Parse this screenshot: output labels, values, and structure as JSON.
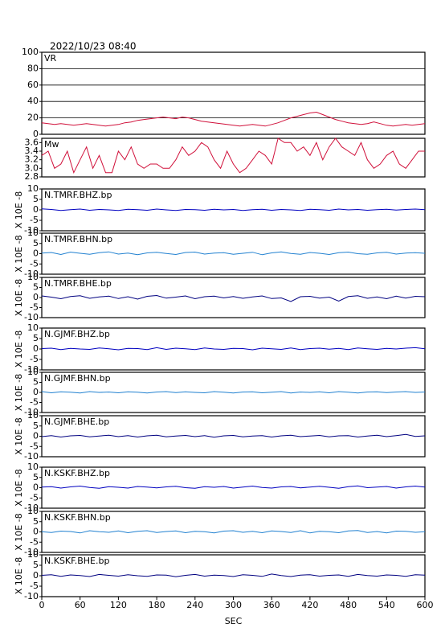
{
  "title": "2022/10/23 08:40",
  "chart_data": [
    {
      "type": "line",
      "title": "VR",
      "color": "#d0103a",
      "grid": true,
      "xlim": [
        0,
        600
      ],
      "ylim": [
        0,
        100
      ],
      "yticks": [
        0,
        20,
        40,
        60,
        80,
        100
      ],
      "x": [
        0,
        10,
        20,
        30,
        40,
        50,
        60,
        70,
        80,
        90,
        100,
        110,
        120,
        130,
        140,
        150,
        160,
        170,
        180,
        190,
        200,
        210,
        220,
        230,
        240,
        250,
        260,
        270,
        280,
        290,
        300,
        310,
        320,
        330,
        340,
        350,
        360,
        370,
        380,
        390,
        400,
        410,
        420,
        430,
        440,
        450,
        460,
        470,
        480,
        490,
        500,
        510,
        520,
        530,
        540,
        550,
        560,
        570,
        580,
        590,
        600
      ],
      "values": [
        14,
        13,
        12,
        13,
        12,
        11,
        12,
        13,
        12,
        11,
        10,
        11,
        12,
        14,
        15,
        17,
        18,
        19,
        20,
        21,
        20,
        19,
        21,
        20,
        18,
        16,
        15,
        14,
        13,
        12,
        11,
        10,
        11,
        12,
        11,
        10,
        12,
        14,
        17,
        20,
        22,
        24,
        26,
        27,
        24,
        21,
        18,
        16,
        14,
        13,
        12,
        13,
        15,
        13,
        11,
        10,
        11,
        12,
        11,
        12,
        13
      ]
    },
    {
      "type": "line",
      "title": "Mw",
      "color": "#d0103a",
      "xlim": [
        0,
        600
      ],
      "ylim": [
        2.8,
        3.7
      ],
      "yticks": [
        2.8,
        {
          "value": 3,
          "label": "3.0"
        },
        3.2,
        3.4,
        3.6
      ],
      "x": [
        0,
        10,
        20,
        30,
        40,
        50,
        60,
        70,
        80,
        90,
        100,
        110,
        120,
        130,
        140,
        150,
        160,
        170,
        180,
        190,
        200,
        210,
        220,
        230,
        240,
        250,
        260,
        270,
        280,
        290,
        300,
        310,
        320,
        330,
        340,
        350,
        360,
        370,
        380,
        390,
        400,
        410,
        420,
        430,
        440,
        450,
        460,
        470,
        480,
        490,
        500,
        510,
        520,
        530,
        540,
        550,
        560,
        570,
        580,
        590,
        600
      ],
      "values": [
        3.3,
        3.4,
        3.0,
        3.1,
        3.4,
        2.9,
        3.2,
        3.5,
        3.0,
        3.3,
        2.9,
        2.9,
        3.4,
        3.2,
        3.5,
        3.1,
        3.0,
        3.1,
        3.1,
        3.0,
        3.0,
        3.2,
        3.5,
        3.3,
        3.4,
        3.6,
        3.5,
        3.2,
        3.0,
        3.4,
        3.1,
        2.9,
        3.0,
        3.2,
        3.4,
        3.3,
        3.1,
        3.7,
        3.6,
        3.6,
        3.4,
        3.5,
        3.3,
        3.6,
        3.2,
        3.5,
        3.7,
        3.5,
        3.4,
        3.3,
        3.6,
        3.2,
        3.0,
        3.1,
        3.3,
        3.4,
        3.1,
        3.0,
        3.2,
        3.4,
        3.4
      ]
    },
    {
      "type": "line",
      "title": "N.TMRF.BHZ.bp",
      "ylabel": "X 10E -8",
      "color": "#0000c0",
      "xlim": [
        0,
        600
      ],
      "ylim": [
        -10,
        10
      ],
      "yticks": [
        -10,
        -5,
        0,
        5,
        10
      ],
      "x": [
        0,
        15,
        30,
        45,
        60,
        75,
        90,
        105,
        120,
        135,
        150,
        165,
        180,
        195,
        210,
        225,
        240,
        255,
        270,
        285,
        300,
        315,
        330,
        345,
        360,
        375,
        390,
        405,
        420,
        435,
        450,
        465,
        480,
        495,
        510,
        525,
        540,
        555,
        570,
        585,
        600
      ],
      "values": [
        0.5,
        0.2,
        -0.3,
        0.1,
        0.4,
        -0.2,
        0.2,
        0.0,
        -0.3,
        0.3,
        0.1,
        -0.2,
        0.4,
        0.0,
        -0.3,
        0.2,
        0.1,
        -0.2,
        0.3,
        0.0,
        0.2,
        -0.3,
        0.1,
        0.3,
        -0.2,
        0.2,
        0.0,
        -0.3,
        0.3,
        0.1,
        -0.2,
        0.4,
        0.0,
        0.2,
        -0.2,
        0.1,
        0.3,
        -0.1,
        0.2,
        0.4,
        0.1
      ]
    },
    {
      "type": "line",
      "title": "N.TMRF.BHN.bp",
      "ylabel": "X 10E -8",
      "color": "#2080d0",
      "xlim": [
        0,
        600
      ],
      "ylim": [
        -10,
        10
      ],
      "yticks": [
        -10,
        -5,
        0,
        5,
        10
      ],
      "x": [
        0,
        15,
        30,
        45,
        60,
        75,
        90,
        105,
        120,
        135,
        150,
        165,
        180,
        195,
        210,
        225,
        240,
        255,
        270,
        285,
        300,
        315,
        330,
        345,
        360,
        375,
        390,
        405,
        420,
        435,
        450,
        465,
        480,
        495,
        510,
        525,
        540,
        555,
        570,
        585,
        600
      ],
      "values": [
        0.3,
        0.6,
        -0.4,
        0.8,
        0.2,
        -0.3,
        0.5,
        0.9,
        -0.2,
        0.3,
        -0.5,
        0.4,
        0.7,
        0.1,
        -0.4,
        0.6,
        0.8,
        -0.2,
        0.3,
        0.5,
        -0.3,
        0.2,
        0.7,
        -0.5,
        0.4,
        0.9,
        0.1,
        -0.3,
        0.6,
        0.2,
        -0.4,
        0.5,
        0.8,
        0.0,
        -0.3,
        0.4,
        0.7,
        -0.2,
        0.3,
        0.5,
        0.2
      ]
    },
    {
      "type": "line",
      "title": "N.TMRF.BHE.bp",
      "ylabel": "X 10E -8",
      "color": "#000080",
      "xlim": [
        0,
        600
      ],
      "ylim": [
        -10,
        10
      ],
      "yticks": [
        -10,
        -5,
        0,
        5,
        10
      ],
      "x": [
        0,
        15,
        30,
        45,
        60,
        75,
        90,
        105,
        120,
        135,
        150,
        165,
        180,
        195,
        210,
        225,
        240,
        255,
        270,
        285,
        300,
        315,
        330,
        345,
        360,
        375,
        390,
        405,
        420,
        435,
        450,
        465,
        480,
        495,
        510,
        525,
        540,
        555,
        570,
        585,
        600
      ],
      "values": [
        0.8,
        0.2,
        -0.6,
        0.5,
        0.9,
        -0.4,
        0.3,
        0.7,
        -0.5,
        0.4,
        -0.8,
        0.6,
        1.0,
        -0.3,
        0.2,
        0.8,
        -0.6,
        0.4,
        0.7,
        -0.2,
        0.5,
        -0.4,
        0.3,
        0.8,
        -0.5,
        -0.2,
        -2.0,
        0.4,
        0.6,
        -0.3,
        0.2,
        -1.8,
        0.5,
        0.9,
        -0.4,
        0.3,
        -0.6,
        0.7,
        -0.3,
        0.6,
        0.4
      ]
    },
    {
      "type": "line",
      "title": "N.GJMF.BHZ.bp",
      "ylabel": "X 10E -8",
      "color": "#0000c0",
      "xlim": [
        0,
        600
      ],
      "ylim": [
        -10,
        10
      ],
      "yticks": [
        -10,
        -5,
        0,
        5,
        10
      ],
      "x": [
        0,
        15,
        30,
        45,
        60,
        75,
        90,
        105,
        120,
        135,
        150,
        165,
        180,
        195,
        210,
        225,
        240,
        255,
        270,
        285,
        300,
        315,
        330,
        345,
        360,
        375,
        390,
        405,
        420,
        435,
        450,
        465,
        480,
        495,
        510,
        525,
        540,
        555,
        570,
        585,
        600
      ],
      "values": [
        0.2,
        0.4,
        -0.3,
        0.3,
        0.0,
        -0.2,
        0.5,
        0.1,
        -0.4,
        0.3,
        0.2,
        -0.3,
        0.6,
        -0.2,
        0.4,
        0.1,
        -0.3,
        0.5,
        0.0,
        -0.2,
        0.3,
        0.2,
        -0.4,
        0.4,
        0.1,
        -0.2,
        0.5,
        -0.3,
        0.2,
        0.4,
        -0.1,
        0.3,
        -0.3,
        0.5,
        0.1,
        -0.2,
        0.3,
        0.0,
        0.4,
        0.6,
        0.1
      ]
    },
    {
      "type": "line",
      "title": "N.GJMF.BHN.bp",
      "ylabel": "X 10E -8",
      "color": "#2080d0",
      "xlim": [
        0,
        600
      ],
      "ylim": [
        -10,
        10
      ],
      "yticks": [
        -10,
        -5,
        0,
        5,
        10
      ],
      "x": [
        0,
        15,
        30,
        45,
        60,
        75,
        90,
        105,
        120,
        135,
        150,
        165,
        180,
        195,
        210,
        225,
        240,
        255,
        270,
        285,
        300,
        315,
        330,
        345,
        360,
        375,
        390,
        405,
        420,
        435,
        450,
        465,
        480,
        495,
        510,
        525,
        540,
        555,
        570,
        585,
        600
      ],
      "values": [
        0.4,
        -0.2,
        0.3,
        0.1,
        -0.3,
        0.4,
        0.0,
        0.2,
        -0.2,
        0.3,
        0.1,
        -0.3,
        0.2,
        0.4,
        -0.1,
        0.3,
        0.0,
        -0.2,
        0.4,
        0.1,
        -0.3,
        0.2,
        0.3,
        -0.2,
        0.1,
        0.4,
        -0.3,
        0.2,
        0.0,
        0.3,
        -0.2,
        0.4,
        0.1,
        -0.3,
        0.2,
        0.3,
        -0.1,
        0.2,
        0.4,
        0.0,
        0.2
      ]
    },
    {
      "type": "line",
      "title": "N.GJMF.BHE.bp",
      "ylabel": "X 10E -8",
      "color": "#000080",
      "xlim": [
        0,
        600
      ],
      "ylim": [
        -10,
        10
      ],
      "yticks": [
        -10,
        -5,
        0,
        5,
        10
      ],
      "x": [
        0,
        15,
        30,
        45,
        60,
        75,
        90,
        105,
        120,
        135,
        150,
        165,
        180,
        195,
        210,
        225,
        240,
        255,
        270,
        285,
        300,
        315,
        330,
        345,
        360,
        375,
        390,
        405,
        420,
        435,
        450,
        465,
        480,
        495,
        510,
        525,
        540,
        555,
        570,
        585,
        600
      ],
      "values": [
        -0.2,
        0.3,
        -0.4,
        0.2,
        0.4,
        -0.3,
        0.1,
        0.5,
        -0.2,
        0.3,
        -0.4,
        0.2,
        0.5,
        -0.3,
        0.1,
        0.4,
        -0.2,
        0.3,
        -0.5,
        0.2,
        0.4,
        -0.3,
        0.1,
        0.3,
        -0.4,
        0.2,
        0.5,
        -0.2,
        0.1,
        0.4,
        -0.3,
        0.2,
        0.3,
        -0.4,
        0.1,
        0.5,
        -0.2,
        0.3,
        0.9,
        -0.1,
        0.2
      ]
    },
    {
      "type": "line",
      "title": "N.KSKF.BHZ.bp",
      "ylabel": "X 10E -8",
      "color": "#0000c0",
      "xlim": [
        0,
        600
      ],
      "ylim": [
        -10,
        10
      ],
      "yticks": [
        -10,
        -5,
        0,
        5,
        10
      ],
      "x": [
        0,
        15,
        30,
        45,
        60,
        75,
        90,
        105,
        120,
        135,
        150,
        165,
        180,
        195,
        210,
        225,
        240,
        255,
        270,
        285,
        300,
        315,
        330,
        345,
        360,
        375,
        390,
        405,
        420,
        435,
        450,
        465,
        480,
        495,
        510,
        525,
        540,
        555,
        570,
        585,
        600
      ],
      "values": [
        0.3,
        0.5,
        -0.2,
        0.4,
        0.8,
        0.1,
        -0.3,
        0.5,
        0.2,
        -0.2,
        0.6,
        0.3,
        -0.1,
        0.4,
        0.7,
        0.0,
        -0.3,
        0.5,
        0.2,
        0.6,
        -0.2,
        0.3,
        0.8,
        0.1,
        -0.2,
        0.4,
        0.6,
        -0.1,
        0.3,
        0.7,
        0.2,
        -0.3,
        0.5,
        0.9,
        0.0,
        0.3,
        0.6,
        -0.2,
        0.4,
        0.8,
        0.3
      ]
    },
    {
      "type": "line",
      "title": "N.KSKF.BHN.bp",
      "ylabel": "X 10E -8",
      "color": "#2080d0",
      "xlim": [
        0,
        600
      ],
      "ylim": [
        -10,
        10
      ],
      "yticks": [
        -10,
        -5,
        0,
        5,
        10
      ],
      "x": [
        0,
        15,
        30,
        45,
        60,
        75,
        90,
        105,
        120,
        135,
        150,
        165,
        180,
        195,
        210,
        225,
        240,
        255,
        270,
        285,
        300,
        315,
        330,
        345,
        360,
        375,
        390,
        405,
        420,
        435,
        450,
        465,
        480,
        495,
        510,
        525,
        540,
        555,
        570,
        585,
        600
      ],
      "values": [
        0.1,
        -0.3,
        0.4,
        0.2,
        -0.5,
        0.6,
        0.1,
        -0.2,
        0.5,
        -0.4,
        0.3,
        0.6,
        -0.3,
        0.2,
        0.5,
        -0.4,
        0.3,
        0.1,
        -0.5,
        0.4,
        0.6,
        -0.2,
        0.3,
        -0.4,
        0.5,
        0.2,
        -0.3,
        0.6,
        -0.5,
        0.3,
        0.1,
        -0.4,
        0.5,
        0.7,
        -0.3,
        0.2,
        -0.5,
        0.4,
        0.3,
        -0.2,
        0.1
      ]
    },
    {
      "type": "line",
      "title": "N.KSKF.BHE.bp",
      "ylabel": "X 10E -8",
      "color": "#000080",
      "xlabel": "SEC",
      "xlim": [
        0,
        600
      ],
      "ylim": [
        -10,
        10
      ],
      "yticks": [
        -10,
        -5,
        0,
        5,
        10
      ],
      "xticks": [
        0,
        60,
        120,
        180,
        240,
        300,
        360,
        420,
        480,
        540,
        600
      ],
      "x": [
        0,
        15,
        30,
        45,
        60,
        75,
        90,
        105,
        120,
        135,
        150,
        165,
        180,
        195,
        210,
        225,
        240,
        255,
        270,
        285,
        300,
        315,
        330,
        345,
        360,
        375,
        390,
        405,
        420,
        435,
        450,
        465,
        480,
        495,
        510,
        525,
        540,
        555,
        570,
        585,
        600
      ],
      "values": [
        0.2,
        0.5,
        -0.3,
        0.4,
        0.1,
        -0.4,
        0.6,
        0.2,
        -0.2,
        0.5,
        0.0,
        -0.3,
        0.4,
        0.3,
        -0.5,
        0.2,
        0.6,
        -0.2,
        0.3,
        0.1,
        -0.4,
        0.5,
        0.2,
        -0.3,
        0.8,
        0.1,
        -0.4,
        0.3,
        0.5,
        -0.2,
        0.2,
        0.4,
        -0.3,
        0.6,
        0.1,
        -0.2,
        0.4,
        0.2,
        -0.3,
        0.5,
        0.3
      ]
    }
  ]
}
